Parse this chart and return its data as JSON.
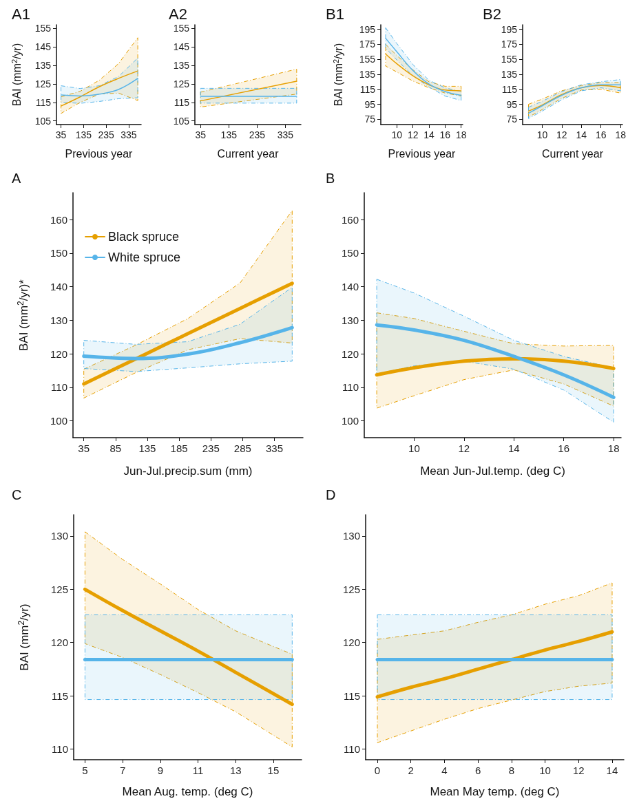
{
  "chart_data": [
    {
      "type": "line",
      "title": "A1",
      "xlabel": "Previous year",
      "ylabel": "BAI (mm$^{2}$/yr)",
      "x": [
        35,
        120,
        205,
        290,
        375
      ],
      "xlim": [
        15,
        390
      ],
      "xticks": [
        35,
        135,
        235,
        335
      ],
      "ylim": [
        103,
        157
      ],
      "yticks": [
        105,
        115,
        125,
        135,
        145,
        155
      ],
      "series": [
        {
          "color": "#e69f00",
          "values": [
            113,
            118,
            123.5,
            128,
            132
          ],
          "lower": [
            109,
            115,
            119.5,
            120,
            116
          ],
          "upper": [
            118,
            121,
            127,
            136,
            150
          ]
        },
        {
          "color": "#56b4e9",
          "values": [
            119,
            118.5,
            119.5,
            122,
            128
          ],
          "lower": [
            115,
            114.5,
            115.5,
            117,
            117.5
          ],
          "upper": [
            124,
            122.5,
            124,
            129,
            139
          ]
        }
      ]
    },
    {
      "type": "line",
      "title": "A2",
      "xlabel": "Current year",
      "x": [
        35,
        375
      ],
      "xlim": [
        15,
        390
      ],
      "xticks": [
        35,
        135,
        235,
        335
      ],
      "ylim": [
        103,
        157
      ],
      "yticks": [
        105,
        115,
        125,
        135,
        145,
        155
      ],
      "series": [
        {
          "color": "#e69f00",
          "values": [
            115.8,
            126.5
          ],
          "lower": [
            112.5,
            119.5
          ],
          "upper": [
            120.5,
            133
          ]
        },
        {
          "color": "#56b4e9",
          "values": [
            118.3,
            118.3
          ],
          "lower": [
            114.6,
            114.6
          ],
          "upper": [
            122.6,
            122.6
          ]
        }
      ]
    },
    {
      "type": "line",
      "title": "B1",
      "xlabel": "Previous year",
      "ylabel": "BAI (mm$^{2}$/yr)",
      "x": [
        8.6,
        10,
        12,
        14,
        16,
        18
      ],
      "xlim": [
        8,
        18.2
      ],
      "xticks": [
        10,
        12,
        14,
        16,
        18
      ],
      "ylim": [
        68,
        201
      ],
      "yticks": [
        75,
        95,
        115,
        135,
        155,
        175,
        195
      ],
      "series": [
        {
          "color": "#e69f00",
          "values": [
            162,
            149,
            133,
            121,
            114,
            113
          ],
          "lower": [
            146,
            138,
            126,
            117,
            110,
            106
          ],
          "upper": [
            175,
            160,
            141,
            125,
            119,
            119
          ]
        },
        {
          "color": "#56b4e9",
          "values": [
            183,
            165,
            140,
            122,
            112,
            107
          ],
          "lower": [
            170,
            154,
            133,
            118,
            106,
            100
          ],
          "upper": [
            197,
            176,
            148,
            127,
            117,
            112
          ]
        }
      ]
    },
    {
      "type": "line",
      "title": "B2",
      "xlabel": "Current year",
      "x": [
        8.6,
        10,
        12,
        14,
        16,
        18
      ],
      "xlim": [
        8,
        18.2
      ],
      "xticks": [
        10,
        12,
        14,
        16,
        18
      ],
      "ylim": [
        68,
        201
      ],
      "yticks": [
        75,
        95,
        115,
        135,
        155,
        175,
        195
      ],
      "series": [
        {
          "color": "#e69f00",
          "values": [
            86,
            94,
            108,
            117,
            120,
            117
          ],
          "lower": [
            78,
            88,
            103,
            114,
            115,
            110
          ],
          "upper": [
            95,
            102,
            113,
            120,
            124,
            124
          ]
        },
        {
          "color": "#56b4e9",
          "values": [
            83,
            93,
            107,
            117,
            121,
            121
          ],
          "lower": [
            76,
            86,
            101,
            113,
            117,
            113
          ],
          "upper": [
            91,
            99,
            112,
            121,
            125,
            128
          ]
        }
      ]
    },
    {
      "type": "line",
      "title": "A",
      "xlabel": "Jun-Jul.precip.sum (mm)",
      "ylabel": "BAI (mm$^{2}$/yr)*",
      "legend": "top left",
      "x": [
        35,
        117,
        199,
        281,
        363
      ],
      "xlim": [
        18,
        380
      ],
      "xticks": [
        35,
        85,
        135,
        185,
        235,
        285,
        335
      ],
      "ylim": [
        95,
        168
      ],
      "yticks": [
        100,
        110,
        120,
        130,
        140,
        150,
        160
      ],
      "series": [
        {
          "name": "Black spruce",
          "color": "#e69f00",
          "values": [
            111,
            118.5,
            126,
            133.5,
            141
          ],
          "lower": [
            106.8,
            114.4,
            121.2,
            124.5,
            123.2
          ],
          "upper": [
            115.4,
            122.6,
            130.5,
            141.1,
            162.7
          ]
        },
        {
          "name": "White spruce",
          "color": "#56b4e9",
          "values": [
            119.3,
            118.6,
            119.9,
            123.3,
            127.8
          ],
          "lower": [
            115.6,
            114.7,
            115.8,
            117,
            117.8
          ],
          "upper": [
            124,
            122.8,
            123.6,
            128.8,
            139.8
          ]
        }
      ]
    },
    {
      "type": "line",
      "title": "B",
      "xlabel": "Mean Jun-Jul.temp. (deg C)",
      "x": [
        8.5,
        10,
        12,
        14,
        16,
        18
      ],
      "xlim": [
        8,
        18.3
      ],
      "xticks": [
        10,
        12,
        14,
        16,
        18
      ],
      "ylim": [
        95,
        168
      ],
      "yticks": [
        100,
        110,
        120,
        130,
        140,
        150,
        160
      ],
      "series": [
        {
          "color": "#e69f00",
          "values": [
            113.7,
            115.8,
            117.8,
            118.5,
            117.8,
            115.6
          ],
          "lower": [
            103.8,
            107.5,
            112.3,
            115.2,
            111,
            104.4
          ],
          "upper": [
            132.2,
            130.5,
            126.7,
            123,
            122.3,
            122.5
          ]
        },
        {
          "color": "#56b4e9",
          "values": [
            128.6,
            127.1,
            124,
            119.2,
            113.7,
            107
          ],
          "lower": [
            114,
            116.4,
            117.8,
            115.4,
            109.2,
            99.6
          ],
          "upper": [
            142.2,
            138.1,
            131.2,
            124,
            119.2,
            115.8
          ]
        }
      ]
    },
    {
      "type": "line",
      "title": "C",
      "xlabel": "Mean Aug. temp. (deg C)",
      "ylabel": "BAI (mm$^{2}$/yr)",
      "x": [
        5,
        7,
        9,
        11,
        13,
        16
      ],
      "xlim": [
        4.4,
        16.5
      ],
      "xticks": [
        5,
        7,
        9,
        11,
        13,
        15
      ],
      "ylim": [
        109,
        132
      ],
      "yticks": [
        110,
        115,
        120,
        125,
        130
      ],
      "series": [
        {
          "color": "#e69f00",
          "values": [
            125,
            123,
            121.1,
            119.2,
            117.2,
            114.2
          ],
          "lower": [
            119.9,
            118.6,
            117,
            115.3,
            113.5,
            110.2
          ],
          "upper": [
            130.4,
            127.8,
            125.5,
            123.1,
            121.1,
            118.9
          ]
        },
        {
          "color": "#56b4e9",
          "values": [
            118.4,
            118.4,
            118.4,
            118.4,
            118.4,
            118.4
          ],
          "lower": [
            114.65,
            114.65,
            114.65,
            114.65,
            114.65,
            114.65
          ],
          "upper": [
            122.6,
            122.6,
            122.6,
            122.6,
            122.6,
            122.6
          ]
        }
      ]
    },
    {
      "type": "line",
      "title": "D",
      "xlabel": "Mean May temp. (deg C)",
      "x": [
        0,
        2,
        4,
        6,
        8,
        10,
        12,
        14
      ],
      "xlim": [
        -0.7,
        14.7
      ],
      "xticks": [
        0,
        2,
        4,
        6,
        8,
        10,
        12,
        14
      ],
      "ylim": [
        109,
        132
      ],
      "yticks": [
        110,
        115,
        120,
        125,
        130
      ],
      "series": [
        {
          "color": "#e69f00",
          "values": [
            114.9,
            115.8,
            116.6,
            117.5,
            118.4,
            119.3,
            120.1,
            121
          ],
          "lower": [
            110.6,
            111.7,
            112.8,
            113.8,
            114.6,
            115.4,
            115.9,
            116.2
          ],
          "upper": [
            120.3,
            120.7,
            121.1,
            121.9,
            122.6,
            123.6,
            124.4,
            125.6
          ]
        },
        {
          "color": "#56b4e9",
          "values": [
            118.4,
            118.4,
            118.4,
            118.4,
            118.4,
            118.4,
            118.4,
            118.4
          ],
          "lower": [
            114.65,
            114.65,
            114.65,
            114.65,
            114.65,
            114.65,
            114.65,
            114.65
          ],
          "upper": [
            122.6,
            122.6,
            122.6,
            122.6,
            122.6,
            122.6,
            122.6,
            122.6
          ]
        }
      ]
    }
  ]
}
